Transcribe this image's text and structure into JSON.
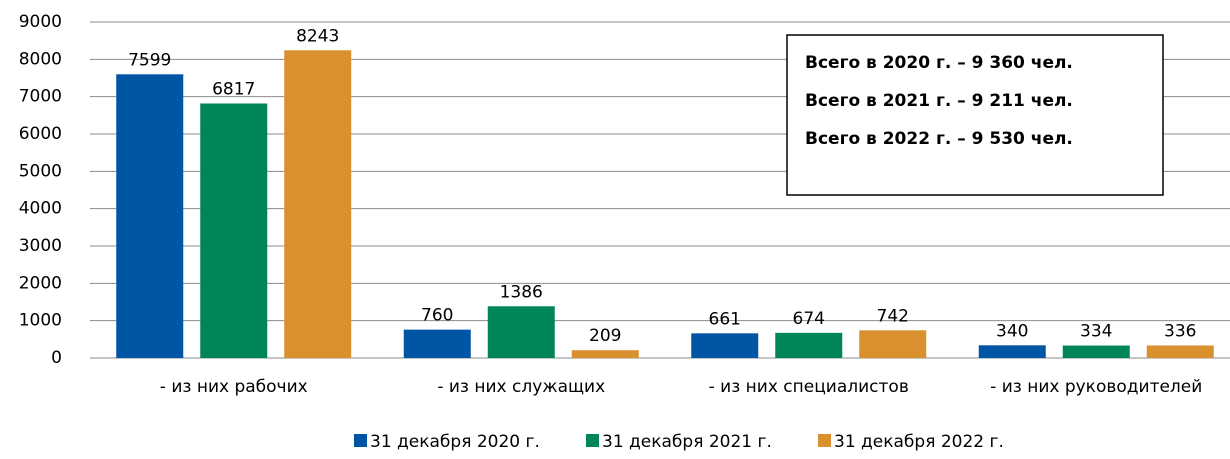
{
  "chart_data": {
    "type": "bar",
    "categories": [
      "- из них рабочих",
      "- из них служащих",
      "- из них специалистов",
      "- из них руководителей"
    ],
    "series": [
      {
        "name": "31 декабря 2020 г.",
        "color": "#0055a5",
        "values": [
          7599,
          760,
          661,
          340
        ]
      },
      {
        "name": "31 декабря 2021 г.",
        "color": "#00855a",
        "values": [
          6817,
          1386,
          674,
          334
        ]
      },
      {
        "name": "31 декабря 2022 г.",
        "color": "#d99130",
        "values": [
          8243,
          209,
          742,
          336
        ]
      }
    ],
    "ylim": [
      0,
      9000
    ],
    "yticks": [
      0,
      1000,
      2000,
      3000,
      4000,
      5000,
      6000,
      7000,
      8000,
      9000
    ],
    "grid": true,
    "legend": "bottom",
    "annotations": [
      "Всего в 2020 г. – 9 360 чел.",
      "Всего в 2021 г. – 9 211 чел.",
      "Всего в 2022 г. – 9 530 чел."
    ]
  }
}
